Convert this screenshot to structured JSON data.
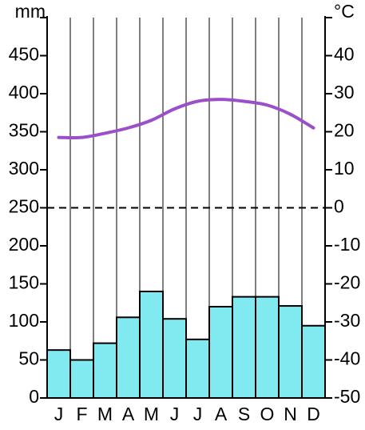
{
  "chart_data": {
    "type": "climate",
    "y_label": "mm",
    "y2_label": "°C",
    "categories": [
      "J",
      "F",
      "M",
      "A",
      "M",
      "J",
      "J",
      "A",
      "S",
      "O",
      "N",
      "D"
    ],
    "series": [
      {
        "name": "Precipitation",
        "type": "bar",
        "color": "#80eaf0",
        "values": [
          63,
          50,
          72,
          106,
          140,
          104,
          77,
          120,
          133,
          133,
          121,
          95
        ]
      },
      {
        "name": "Temperature",
        "type": "line",
        "axis": "y2",
        "color": "#9b4fc9",
        "values": [
          18.5,
          18.5,
          19.6,
          21,
          23,
          26,
          28,
          28.5,
          28,
          27,
          24.6,
          21
        ]
      }
    ],
    "ylim": [
      0,
      500
    ],
    "yticks": [
      0,
      50,
      100,
      150,
      200,
      250,
      300,
      350,
      400,
      450
    ],
    "y2lim": [
      -50,
      50
    ],
    "y2ticks": [
      -50,
      -40,
      -30,
      -20,
      -10,
      0,
      10,
      20,
      30,
      40
    ]
  }
}
